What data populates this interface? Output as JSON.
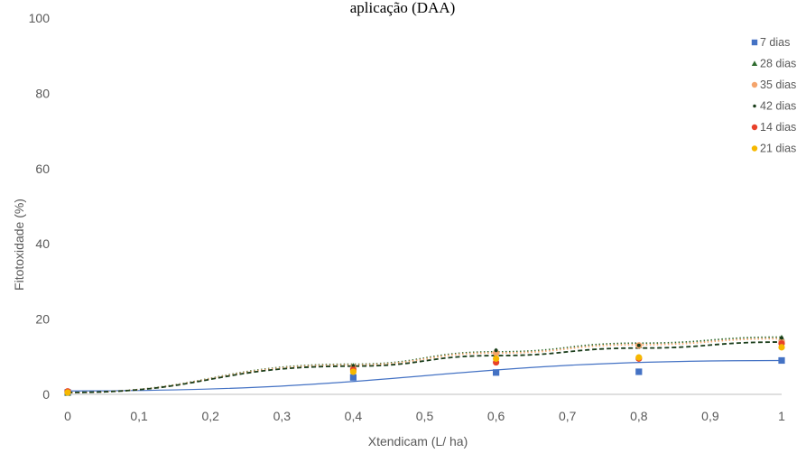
{
  "chart_data": {
    "type": "scatter",
    "title": "aplicação (DAA)",
    "xlabel": "Xtendicam (L/ ha)",
    "ylabel": "Fitotoxidade (%)",
    "xlim": [
      0,
      1
    ],
    "ylim": [
      0,
      100
    ],
    "x_ticks": [
      "0",
      "0,1",
      "0,2",
      "0,3",
      "0,4",
      "0,5",
      "0,6",
      "0,7",
      "0,8",
      "0,9",
      "1"
    ],
    "y_ticks": [
      "0",
      "20",
      "40",
      "60",
      "80",
      "100"
    ],
    "grid": false,
    "legend_position": "top-right",
    "series": [
      {
        "name": "7 dias",
        "color": "#4472c4",
        "marker": "square",
        "x": [
          0,
          0.4,
          0.6,
          0.8,
          1
        ],
        "y": [
          0.5,
          4.5,
          5.8,
          6.0,
          9.0
        ],
        "trend": [
          0.9,
          9.0
        ],
        "trend_style": "solid"
      },
      {
        "name": "28 dias",
        "color": "#2e6b2e",
        "marker": "triangle",
        "x": [
          0,
          0.4,
          0.6,
          0.8,
          1
        ],
        "y": [
          0.3,
          7.5,
          11.5,
          13.0,
          15.0
        ],
        "trend": [
          0.5,
          8.0,
          11.3,
          13.6,
          15.2
        ],
        "trend_style": "dotted"
      },
      {
        "name": "35 dias",
        "color": "#f4a46c",
        "marker": "circle",
        "x": [
          0,
          0.4,
          0.6,
          0.8,
          1
        ],
        "y": [
          0.5,
          7.0,
          11.0,
          13.0,
          14.0
        ],
        "trend": [
          0.5,
          7.8,
          11.0,
          13.2,
          14.8
        ],
        "trend_style": "dotted"
      },
      {
        "name": "42 dias",
        "color": "#1a3d1a",
        "marker": "dot",
        "x": [
          0,
          0.4,
          0.6,
          0.8,
          1
        ],
        "y": [
          0.3,
          7.5,
          11.7,
          13.0,
          15.0
        ],
        "trend": [
          0.5,
          7.5,
          10.3,
          12.3,
          13.9
        ],
        "trend_style": "dashed"
      },
      {
        "name": "14 dias",
        "color": "#e8412a",
        "marker": "circle",
        "x": [
          0,
          0.4,
          0.6,
          0.8,
          1
        ],
        "y": [
          0.8,
          6.5,
          8.5,
          9.5,
          13.5
        ],
        "trend": [],
        "trend_style": "none"
      },
      {
        "name": "21 dias",
        "color": "#f6b800",
        "marker": "circle",
        "x": [
          0,
          0.4,
          0.6,
          0.8,
          1
        ],
        "y": [
          0.5,
          6.0,
          9.5,
          9.8,
          12.5
        ],
        "trend": [],
        "trend_style": "none"
      }
    ]
  }
}
